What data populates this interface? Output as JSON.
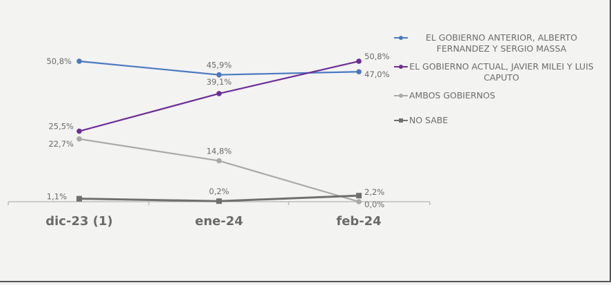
{
  "chart_data": {
    "type": "line",
    "categories": [
      "dic-23 (1)",
      "ene-24",
      "feb-24"
    ],
    "ylim": [
      0,
      55
    ],
    "grid": false,
    "legend_position": "right",
    "series": [
      {
        "name": "EL GOBIERNO ANTERIOR, ALBERTO FERNANDEZ Y SERGIO MASSA",
        "values": [
          50.8,
          45.9,
          47.0
        ],
        "labels": [
          "50,8%",
          "45,9%",
          "47,0%"
        ],
        "color": "#4a78c0",
        "marker": "circle"
      },
      {
        "name": "EL GOBIERNO ACTUAL, JAVIER MILEI Y LUIS CAPUTO",
        "values": [
          25.5,
          39.1,
          50.8
        ],
        "labels": [
          "25,5%",
          "39,1%",
          "50,8%"
        ],
        "color": "#6b2d96",
        "marker": "circle"
      },
      {
        "name": "AMBOS GOBIERNOS",
        "values": [
          22.7,
          14.8,
          0.0
        ],
        "labels": [
          "22,7%",
          "14,8%",
          "0,0%"
        ],
        "color": "#a9a9a9",
        "marker": "circle"
      },
      {
        "name": "NO SABE",
        "values": [
          1.1,
          0.2,
          2.2
        ],
        "labels": [
          "1,1%",
          "0,2%",
          "2,2%"
        ],
        "color": "#6f6f6f",
        "marker": "square"
      }
    ]
  }
}
